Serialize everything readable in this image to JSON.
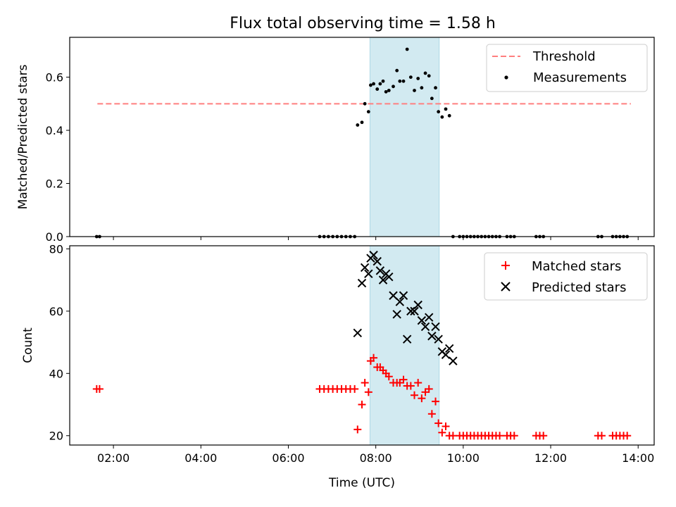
{
  "colors": {
    "threshold": "#ff7f7f",
    "measurement": "#000000",
    "span": "#add8e6",
    "matched": "#ff0000",
    "predicted": "#000000"
  },
  "chart_data": [
    {
      "type": "scatter",
      "title": "Flux total observing time = 1.58 h",
      "xlabel": "",
      "ylabel": "Matched/Predicted stars",
      "xlim": [
        "01:00",
        "14:22"
      ],
      "ylim": [
        0,
        0.75
      ],
      "yticks": [
        0.0,
        0.2,
        0.4,
        0.6
      ],
      "ytick_labels": [
        "0.0",
        "0.2",
        "0.4",
        "0.6"
      ],
      "xticks": [
        "02:00",
        "04:00",
        "06:00",
        "08:00",
        "10:00",
        "12:00",
        "14:00"
      ],
      "grid": false,
      "legend": "top-right",
      "shaded_span": [
        "07:52",
        "09:27"
      ],
      "series": [
        {
          "name": "Threshold",
          "kind": "line",
          "style": "dashed",
          "color": "#ff7f7f",
          "x": [
            "01:38",
            "13:50"
          ],
          "y": [
            0.5,
            0.5
          ]
        },
        {
          "name": "Measurements",
          "kind": "scatter",
          "marker": "dot",
          "color": "#000000",
          "x": [
            "01:37",
            "01:41",
            "06:43",
            "06:49",
            "06:55",
            "07:01",
            "07:07",
            "07:13",
            "07:19",
            "07:25",
            "07:31",
            "07:35",
            "07:41",
            "07:45",
            "07:50",
            "07:53",
            "07:57",
            "08:02",
            "08:06",
            "08:10",
            "08:14",
            "08:18",
            "08:24",
            "08:29",
            "08:33",
            "08:38",
            "08:43",
            "08:48",
            "08:53",
            "08:58",
            "09:03",
            "09:08",
            "09:13",
            "09:17",
            "09:22",
            "09:26",
            "09:31",
            "09:36",
            "09:41",
            "09:46",
            "09:55",
            "10:00",
            "10:05",
            "10:10",
            "10:15",
            "10:20",
            "10:25",
            "10:30",
            "10:35",
            "10:40",
            "10:45",
            "10:50",
            "11:00",
            "11:05",
            "11:10",
            "11:40",
            "11:45",
            "11:50",
            "13:05",
            "13:10",
            "13:25",
            "13:30",
            "13:35",
            "13:40",
            "13:45"
          ],
          "y": [
            0,
            0,
            0,
            0,
            0,
            0,
            0,
            0,
            0,
            0,
            0,
            0.42,
            0.43,
            0.5,
            0.47,
            0.57,
            0.575,
            0.555,
            0.575,
            0.585,
            0.545,
            0.55,
            0.565,
            0.625,
            0.585,
            0.585,
            0.705,
            0.6,
            0.55,
            0.595,
            0.56,
            0.615,
            0.605,
            0.52,
            0.56,
            0.47,
            0.45,
            0.48,
            0.455,
            0,
            0,
            0,
            0,
            0,
            0,
            0,
            0,
            0,
            0,
            0,
            0,
            0,
            0,
            0,
            0,
            0,
            0,
            0,
            0,
            0,
            0,
            0,
            0,
            0,
            0
          ]
        }
      ]
    },
    {
      "type": "scatter",
      "title": "",
      "xlabel": "Time (UTC)",
      "ylabel": "Count",
      "xlim": [
        "01:00",
        "14:22"
      ],
      "ylim": [
        17,
        81
      ],
      "yticks": [
        20,
        40,
        60,
        80
      ],
      "ytick_labels": [
        "20",
        "40",
        "60",
        "80"
      ],
      "xticks": [
        "02:00",
        "04:00",
        "06:00",
        "08:00",
        "10:00",
        "12:00",
        "14:00"
      ],
      "xtick_labels": [
        "02:00",
        "04:00",
        "06:00",
        "08:00",
        "10:00",
        "12:00",
        "14:00"
      ],
      "grid": false,
      "legend": "top-right",
      "shaded_span": [
        "07:52",
        "09:27"
      ],
      "series": [
        {
          "name": "Matched stars",
          "kind": "scatter",
          "marker": "plus",
          "color": "#ff0000",
          "x": [
            "01:37",
            "01:41",
            "06:43",
            "06:49",
            "06:55",
            "07:01",
            "07:07",
            "07:13",
            "07:19",
            "07:25",
            "07:31",
            "07:35",
            "07:41",
            "07:45",
            "07:50",
            "07:53",
            "07:57",
            "08:02",
            "08:06",
            "08:10",
            "08:14",
            "08:18",
            "08:24",
            "08:29",
            "08:33",
            "08:38",
            "08:43",
            "08:48",
            "08:53",
            "08:58",
            "09:03",
            "09:08",
            "09:13",
            "09:17",
            "09:22",
            "09:26",
            "09:31",
            "09:36",
            "09:41",
            "09:46",
            "09:55",
            "10:00",
            "10:05",
            "10:10",
            "10:15",
            "10:20",
            "10:25",
            "10:30",
            "10:35",
            "10:40",
            "10:45",
            "10:50",
            "11:00",
            "11:05",
            "11:10",
            "11:40",
            "11:45",
            "11:50",
            "13:05",
            "13:10",
            "13:25",
            "13:30",
            "13:35",
            "13:40",
            "13:45"
          ],
          "y": [
            35,
            35,
            35,
            35,
            35,
            35,
            35,
            35,
            35,
            35,
            35,
            22,
            30,
            37,
            34,
            44,
            45,
            42,
            42,
            41,
            40,
            39,
            37,
            37,
            37,
            38,
            36,
            36,
            33,
            37,
            32,
            34,
            35,
            27,
            31,
            24,
            21,
            23,
            20,
            20,
            20,
            20,
            20,
            20,
            20,
            20,
            20,
            20,
            20,
            20,
            20,
            20,
            20,
            20,
            20,
            20,
            20,
            20,
            20,
            20,
            20,
            20,
            20,
            20,
            20
          ]
        },
        {
          "name": "Predicted stars",
          "kind": "scatter",
          "marker": "x",
          "color": "#000000",
          "x": [
            "07:35",
            "07:41",
            "07:45",
            "07:50",
            "07:53",
            "07:57",
            "08:02",
            "08:06",
            "08:10",
            "08:14",
            "08:18",
            "08:24",
            "08:29",
            "08:33",
            "08:38",
            "08:43",
            "08:48",
            "08:53",
            "08:58",
            "09:03",
            "09:08",
            "09:13",
            "09:17",
            "09:22",
            "09:26",
            "09:31",
            "09:36",
            "09:41",
            "09:46"
          ],
          "y": [
            53,
            69,
            74,
            72,
            77,
            78,
            76,
            73,
            70,
            72,
            71,
            65,
            59,
            63,
            65,
            51,
            60,
            60,
            62,
            57,
            55,
            58,
            52,
            55,
            51,
            47,
            46,
            48,
            44
          ]
        }
      ]
    }
  ]
}
